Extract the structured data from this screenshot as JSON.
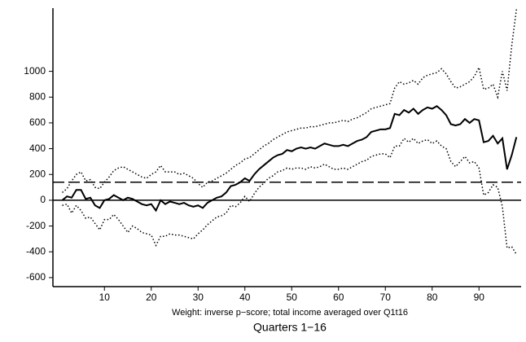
{
  "chart_data": {
    "type": "line",
    "xlabel": "Weight: inverse p−score; total income averaged over Q1t16",
    "xlabel2": "Quarters 1−16",
    "x": [
      1,
      2,
      3,
      4,
      5,
      6,
      7,
      8,
      9,
      10,
      11,
      12,
      13,
      14,
      15,
      16,
      17,
      18,
      19,
      20,
      21,
      22,
      23,
      24,
      25,
      26,
      27,
      28,
      29,
      30,
      31,
      32,
      33,
      34,
      35,
      36,
      37,
      38,
      39,
      40,
      41,
      42,
      43,
      44,
      45,
      46,
      47,
      48,
      49,
      50,
      51,
      52,
      53,
      54,
      55,
      56,
      57,
      58,
      59,
      60,
      61,
      62,
      63,
      64,
      65,
      66,
      67,
      68,
      69,
      70,
      71,
      72,
      73,
      74,
      75,
      76,
      77,
      78,
      79,
      80,
      81,
      82,
      83,
      84,
      85,
      86,
      87,
      88,
      89,
      90,
      91,
      92,
      93,
      94,
      95,
      96,
      97,
      98
    ],
    "series": [
      {
        "color": "#000000",
        "dash": "solid",
        "width": 2,
        "values": [
          0,
          30,
          20,
          80,
          80,
          10,
          20,
          -40,
          -60,
          0,
          10,
          40,
          20,
          0,
          20,
          10,
          -10,
          -30,
          -40,
          -30,
          -80,
          0,
          -30,
          -10,
          -20,
          -30,
          -20,
          -40,
          -50,
          -40,
          -60,
          -20,
          0,
          20,
          30,
          60,
          110,
          120,
          140,
          170,
          150,
          200,
          240,
          270,
          300,
          330,
          350,
          360,
          390,
          380,
          400,
          410,
          400,
          410,
          400,
          420,
          440,
          430,
          420,
          420,
          430,
          420,
          440,
          460,
          470,
          490,
          530,
          540,
          550,
          550,
          560,
          670,
          660,
          700,
          680,
          710,
          670,
          700,
          720,
          710,
          730,
          700,
          660,
          590,
          580,
          590,
          630,
          600,
          630,
          620,
          450,
          460,
          500,
          440,
          480,
          240,
          350,
          490
        ]
      },
      {
        "color": "#000000",
        "dash": "dotted",
        "width": 1.5,
        "values": [
          60,
          90,
          150,
          200,
          220,
          150,
          160,
          100,
          90,
          140,
          180,
          230,
          250,
          260,
          240,
          220,
          200,
          180,
          170,
          200,
          220,
          270,
          220,
          220,
          220,
          200,
          210,
          190,
          170,
          130,
          100,
          140,
          150,
          170,
          190,
          210,
          240,
          270,
          290,
          320,
          330,
          360,
          390,
          420,
          440,
          470,
          490,
          510,
          530,
          540,
          550,
          560,
          560,
          570,
          570,
          580,
          590,
          600,
          600,
          610,
          620,
          610,
          630,
          640,
          660,
          680,
          710,
          720,
          730,
          740,
          750,
          870,
          920,
          900,
          910,
          930,
          900,
          950,
          970,
          980,
          990,
          1020,
          980,
          920,
          870,
          880,
          900,
          920,
          960,
          1030,
          860,
          870,
          900,
          800,
          1000,
          850,
          1200,
          1480
        ]
      },
      {
        "color": "#000000",
        "dash": "dotted",
        "width": 1.5,
        "values": [
          -40,
          -30,
          -100,
          -40,
          -80,
          -140,
          -130,
          -180,
          -230,
          -150,
          -150,
          -110,
          -150,
          -200,
          -250,
          -200,
          -220,
          -250,
          -260,
          -270,
          -350,
          -280,
          -280,
          -260,
          -270,
          -270,
          -280,
          -290,
          -300,
          -260,
          -230,
          -190,
          -160,
          -130,
          -120,
          -100,
          -40,
          -50,
          -20,
          30,
          -10,
          50,
          100,
          130,
          170,
          190,
          220,
          230,
          250,
          240,
          250,
          250,
          240,
          260,
          250,
          260,
          280,
          260,
          240,
          240,
          250,
          240,
          260,
          280,
          300,
          310,
          340,
          350,
          360,
          360,
          330,
          420,
          420,
          480,
          450,
          480,
          440,
          460,
          470,
          440,
          460,
          420,
          400,
          300,
          260,
          300,
          340,
          290,
          300,
          250,
          40,
          60,
          120,
          100,
          -50,
          -370,
          -360,
          -420
        ]
      }
    ],
    "hlines": [
      {
        "value": 0,
        "dash": "solid"
      },
      {
        "value": 140,
        "dash": "dashed"
      }
    ],
    "xlim": [
      -1,
      99
    ],
    "ylim": [
      -670,
      1490
    ],
    "xticks": [
      10,
      20,
      30,
      40,
      50,
      60,
      70,
      80,
      90
    ],
    "yticks": [
      -600,
      -400,
      -200,
      0,
      200,
      400,
      600,
      800,
      1000
    ]
  }
}
